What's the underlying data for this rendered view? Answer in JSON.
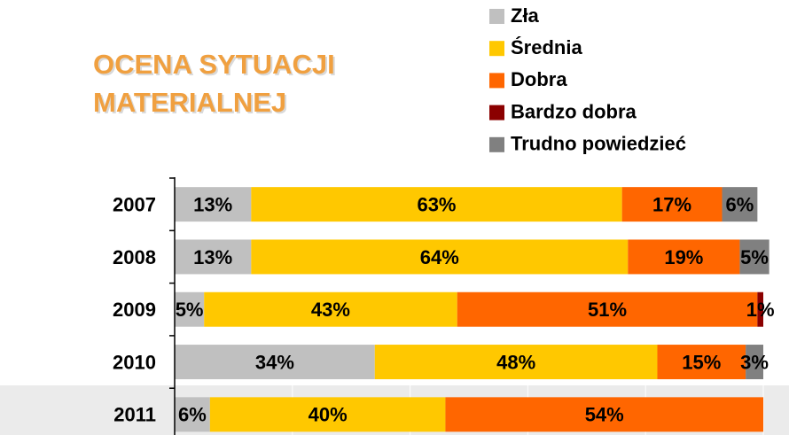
{
  "chart_data": {
    "type": "stacked-bar-horizontal",
    "title": [
      "OCENA SYTUACJI",
      "MATERIALNEJ"
    ],
    "categories": [
      "2007",
      "2008",
      "2009",
      "2010",
      "2011"
    ],
    "series": [
      {
        "name": "Zła",
        "color": "#c0c0c0",
        "values": [
          13,
          13,
          5,
          34,
          6
        ],
        "value_labels": [
          "13%",
          "13%",
          "5%",
          "34%",
          "6%"
        ]
      },
      {
        "name": "Średnia",
        "color": "#ffc800",
        "values": [
          63,
          64,
          43,
          48,
          40
        ],
        "value_labels": [
          "63%",
          "64%",
          "43%",
          "48%",
          "40%"
        ]
      },
      {
        "name": "Dobra",
        "color": "#ff6600",
        "values": [
          17,
          19,
          51,
          15,
          54
        ],
        "value_labels": [
          "17%",
          "19%",
          "51%",
          "15%",
          "54%"
        ]
      },
      {
        "name": "Bardzo dobra",
        "color": "#8b0000",
        "values": [
          null,
          null,
          1,
          null,
          null
        ],
        "value_labels": [
          null,
          null,
          "1%",
          null,
          null
        ]
      },
      {
        "name": "Trudno powiedzieć",
        "color": "#808080",
        "values": [
          6,
          5,
          null,
          3,
          null
        ],
        "value_labels": [
          "6%",
          "5%",
          null,
          "3%",
          null
        ]
      }
    ],
    "xlim": [
      0,
      100
    ],
    "xticks": [
      0,
      20,
      40,
      60,
      80,
      100
    ],
    "grid": true,
    "legend": "top-right"
  }
}
